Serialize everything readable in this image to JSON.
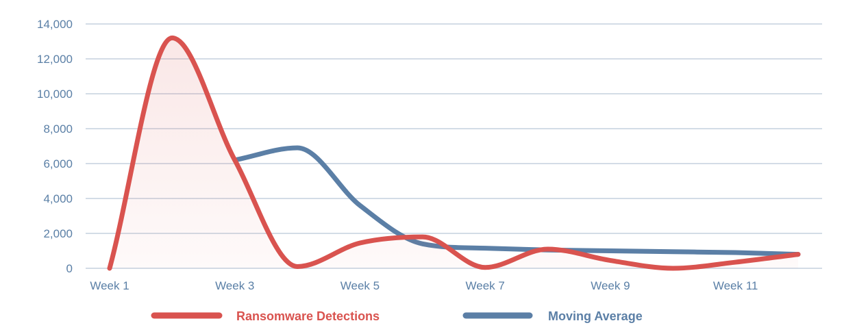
{
  "chart_data": {
    "type": "line",
    "title": "",
    "xlabel": "",
    "ylabel": "",
    "x": [
      "Week 1",
      "Week 2",
      "Week 3",
      "Week 4",
      "Week 5",
      "Week 6",
      "Week 7",
      "Week 8",
      "Week 9",
      "Week 10",
      "Week 11",
      "Week 12"
    ],
    "x_tick_labels": [
      "Week 1",
      "",
      "Week 3",
      "",
      "Week 5",
      "",
      "Week 7",
      "",
      "Week 9",
      "",
      "Week 11",
      ""
    ],
    "y_ticks": [
      0,
      2000,
      4000,
      6000,
      8000,
      10000,
      12000,
      14000
    ],
    "y_tick_labels": [
      "0",
      "2,000",
      "4,000",
      "6,000",
      "8,000",
      "10,000",
      "12,000",
      "14,000"
    ],
    "ylim": [
      0,
      14000
    ],
    "grid": true,
    "legend_position": "bottom",
    "series": [
      {
        "name": "Ransomware Detections",
        "color": "#d9534f",
        "fill": true,
        "values": [
          0,
          13200,
          6200,
          100,
          1450,
          1800,
          50,
          1100,
          450,
          0,
          350,
          800
        ]
      },
      {
        "name": "Moving Average",
        "color": "#5b7fa6",
        "fill": false,
        "values": [
          null,
          null,
          6200,
          6900,
          3600,
          1400,
          1150,
          1050,
          1000,
          950,
          900,
          800
        ]
      }
    ]
  }
}
